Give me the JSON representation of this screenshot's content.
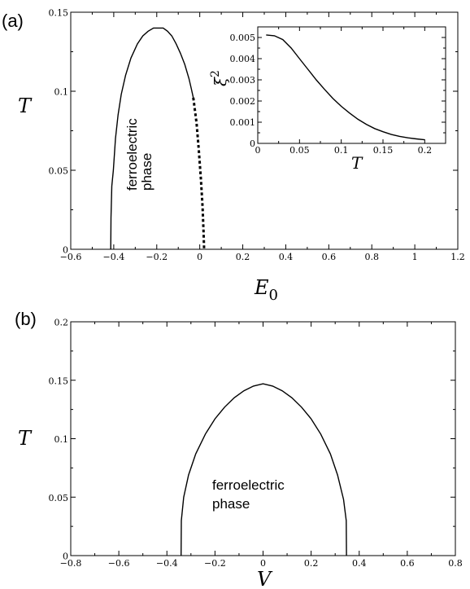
{
  "chart_data": [
    {
      "panel": "(a)",
      "type": "line",
      "xlabel": "E",
      "xlabel_sub": "0",
      "ylabel": "T",
      "xlim": [
        -0.6,
        1.2
      ],
      "ylim": [
        0,
        0.15
      ],
      "xticks": [
        "−0.6",
        "−0.4",
        "−0.2",
        "0",
        "0.2",
        "0.4",
        "0.6",
        "0.8",
        "1",
        "1.2"
      ],
      "yticks": [
        "0",
        "0.05",
        "0.1",
        "0.15"
      ],
      "annotation": [
        "ferroelectric",
        "phase"
      ],
      "series": [
        {
          "style": "solid",
          "x": [
            -0.414,
            -0.413,
            -0.409,
            -0.402,
            -0.392,
            -0.38,
            -0.365,
            -0.345,
            -0.32,
            -0.29,
            -0.265,
            -0.24,
            -0.215,
            -0.19,
            -0.17,
            -0.15,
            -0.13,
            -0.11,
            -0.09,
            -0.07,
            -0.05,
            -0.04,
            -0.03
          ],
          "y": [
            0.0,
            0.02,
            0.04,
            0.05,
            0.07,
            0.085,
            0.098,
            0.11,
            0.121,
            0.13,
            0.135,
            0.138,
            0.14,
            0.14,
            0.14,
            0.138,
            0.135,
            0.13,
            0.124,
            0.117,
            0.108,
            0.102,
            0.096
          ]
        },
        {
          "style": "dotted",
          "x": [
            -0.03,
            -0.015,
            -0.005,
            0.005,
            0.013,
            0.018,
            0.02
          ],
          "y": [
            0.096,
            0.08,
            0.064,
            0.045,
            0.027,
            0.01,
            0.0
          ]
        }
      ],
      "inset": {
        "type": "line",
        "xlabel": "T",
        "ylabel": "ξ",
        "ylabel_sup": "2",
        "xlim": [
          0,
          0.225
        ],
        "ylim": [
          0,
          0.0055
        ],
        "xticks": [
          "0",
          "0.05",
          "0.1",
          "0.15",
          "0.2"
        ],
        "yticks": [
          "0",
          "0.001",
          "0.002",
          "0.003",
          "0.004",
          "0.005"
        ],
        "x": [
          0.01,
          0.02,
          0.03,
          0.04,
          0.05,
          0.06,
          0.07,
          0.08,
          0.09,
          0.1,
          0.11,
          0.12,
          0.13,
          0.14,
          0.15,
          0.16,
          0.17,
          0.18,
          0.19,
          0.2
        ],
        "y": [
          0.00512,
          0.00508,
          0.0049,
          0.0045,
          0.004,
          0.0035,
          0.003,
          0.00255,
          0.00212,
          0.00175,
          0.00143,
          0.00114,
          0.0009,
          0.0007,
          0.00055,
          0.00042,
          0.00033,
          0.00026,
          0.00021,
          0.00017
        ]
      }
    },
    {
      "panel": "(b)",
      "type": "line",
      "xlabel": "V",
      "ylabel": "T",
      "xlim": [
        -0.8,
        0.8
      ],
      "ylim": [
        0,
        0.2
      ],
      "xticks": [
        "−0.8",
        "−0.6",
        "−0.4",
        "−0.2",
        "0",
        "0.2",
        "0.4",
        "0.6",
        "0.8"
      ],
      "yticks": [
        "0",
        "0.05",
        "0.1",
        "0.15",
        "0.2"
      ],
      "annotation": [
        "ferroelectric",
        "phase"
      ],
      "series": [
        {
          "style": "solid",
          "x": [
            -0.341,
            -0.34,
            -0.33,
            -0.31,
            -0.28,
            -0.24,
            -0.2,
            -0.16,
            -0.12,
            -0.08,
            -0.04,
            0.0,
            0.04,
            0.08,
            0.12,
            0.16,
            0.2,
            0.24,
            0.28,
            0.31,
            0.335,
            0.346,
            0.347
          ],
          "y": [
            0.0,
            0.03,
            0.05,
            0.069,
            0.087,
            0.104,
            0.117,
            0.127,
            0.135,
            0.141,
            0.145,
            0.147,
            0.145,
            0.141,
            0.135,
            0.127,
            0.117,
            0.104,
            0.087,
            0.069,
            0.048,
            0.03,
            0.0
          ]
        }
      ]
    }
  ]
}
